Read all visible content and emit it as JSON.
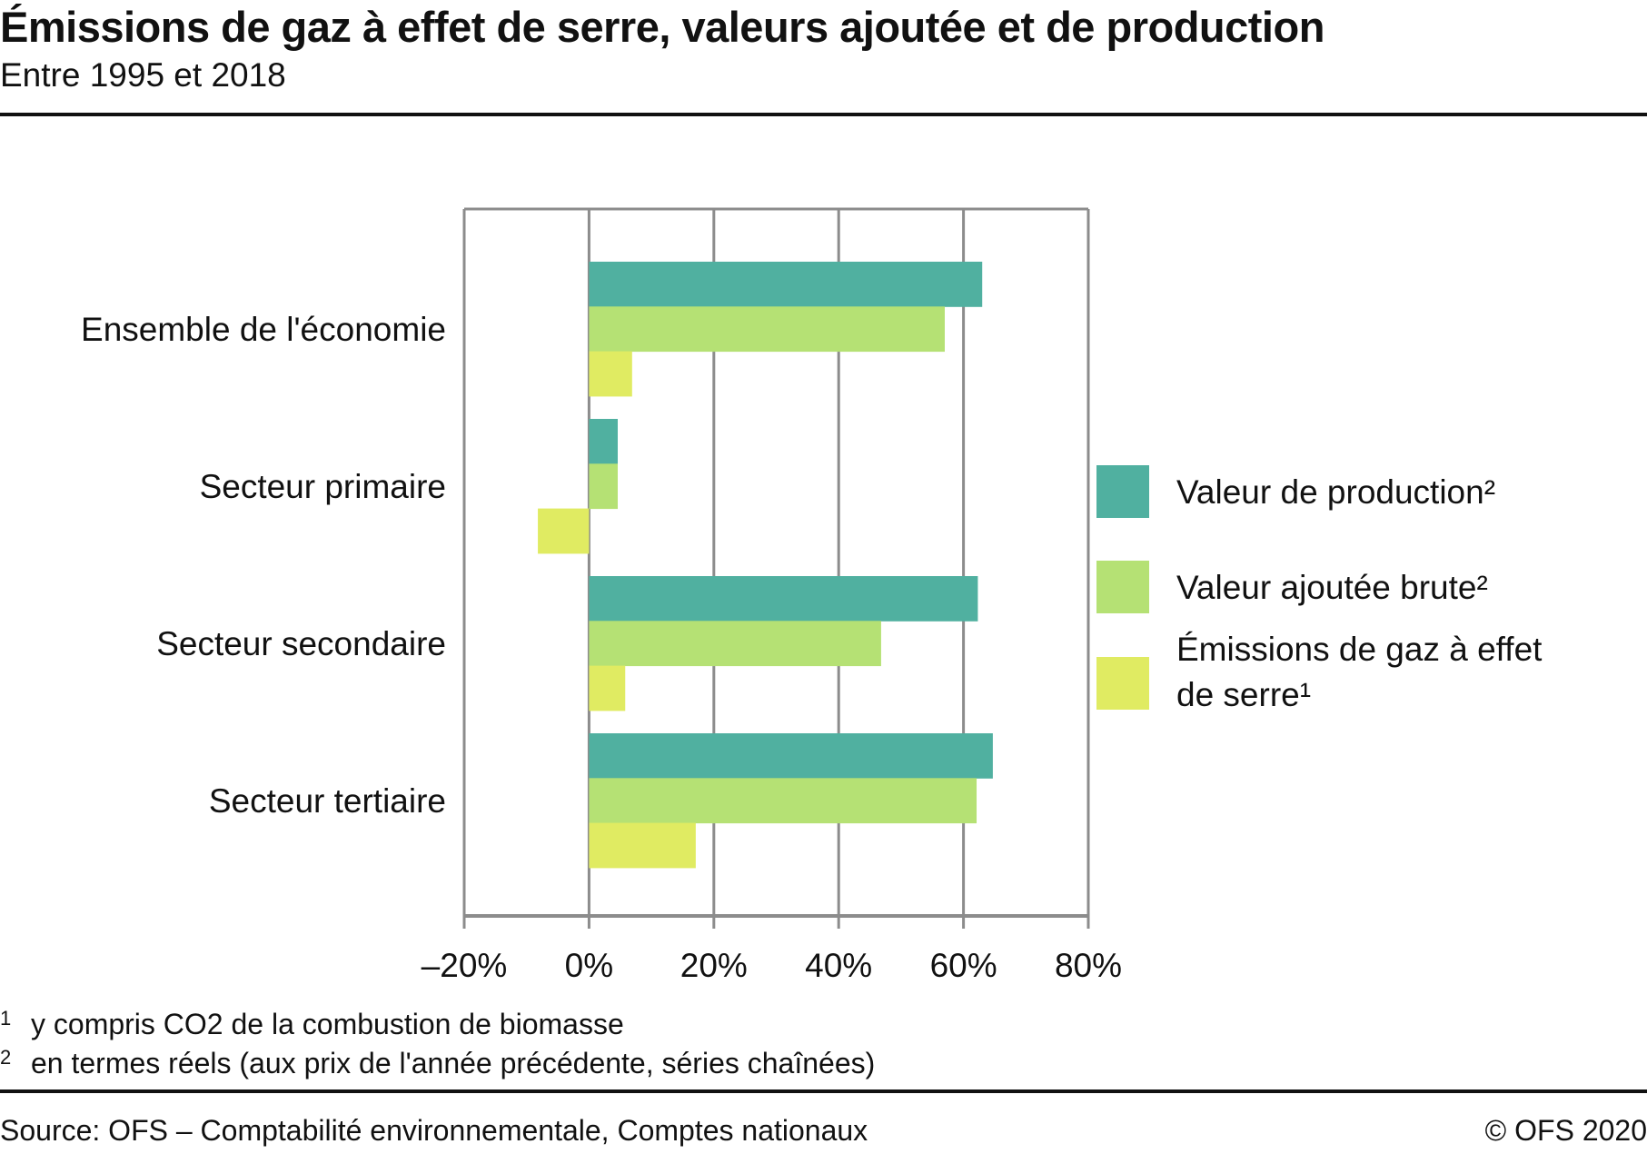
{
  "header": {
    "title": "Émissions de gaz à effet de serre, valeurs ajoutée et de production",
    "subtitle": "Entre 1995 et 2018"
  },
  "chart_data": {
    "type": "bar",
    "orientation": "horizontal",
    "title": "Émissions de gaz à effet de serre, valeurs ajoutée et de production",
    "subtitle": "Entre 1995 et 2018",
    "xlabel": "",
    "ylabel": "",
    "xlim": [
      -20,
      80
    ],
    "x_ticks": [
      -20,
      0,
      20,
      40,
      60,
      80
    ],
    "x_tick_labels": [
      "–20%",
      "0%",
      "20%",
      "40%",
      "60%",
      "80%"
    ],
    "grid": true,
    "legend_position": "right",
    "categories": [
      "Ensemble de l'économie",
      "Secteur primaire",
      "Secteur secondaire",
      "Secteur tertiaire"
    ],
    "series": [
      {
        "name": "Valeur de production²",
        "color": "#50B0A0",
        "values": [
          63.0,
          4.6,
          62.3,
          64.7
        ]
      },
      {
        "name": "Valeur ajoutée brute²",
        "color": "#B5E174",
        "values": [
          57.0,
          4.6,
          46.8,
          62.1
        ]
      },
      {
        "name": "Émissions de gaz à effet de serre¹",
        "legend_lines": [
          "Émissions de gaz à effet",
          "de serre¹"
        ],
        "color": "#E0EB62",
        "values": [
          6.9,
          -8.2,
          5.8,
          17.1
        ]
      }
    ],
    "unit": "%"
  },
  "footnotes": [
    {
      "mark": "1",
      "text": "y compris CO2 de la combustion de biomasse"
    },
    {
      "mark": "2",
      "text": "en termes réels (aux prix de l'année précédente, séries chaînées)"
    }
  ],
  "footer": {
    "source": "Source: OFS – Comptabilité environnementale, Comptes nationaux",
    "copyright": "© OFS 2020"
  },
  "colors": {
    "grid": "#8c8c8c",
    "text": "#111111"
  }
}
